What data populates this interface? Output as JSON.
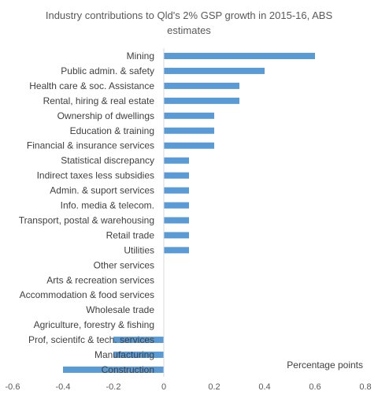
{
  "chart_data": {
    "type": "bar",
    "orientation": "horizontal",
    "title_line1": "Industry contributions to Qld's 2% GSP growth in 2015-16,  ABS",
    "title_line2": "estimates",
    "unit_label": "Percentage points",
    "bar_color": "#5b9bd5",
    "xlim": [
      -0.6,
      0.8
    ],
    "xticks": [
      "-0.6",
      "-0.4",
      "-0.2",
      "0",
      "0.2",
      "0.4",
      "0.6",
      "0.8"
    ],
    "xtick_values": [
      -0.6,
      -0.4,
      -0.2,
      0,
      0.2,
      0.4,
      0.6,
      0.8
    ],
    "grid": false,
    "categories": [
      "Mining",
      "Public admin. & safety",
      "Health care & soc. Assistance",
      "Rental, hiring & real estate",
      "Ownership of dwellings",
      "Education & training",
      "Financial & insurance services",
      "Statistical discrepancy",
      "Indirect taxes less subsidies",
      "Admin. & suport services",
      "Info. media & telecom.",
      "Transport, postal & warehousing",
      "Retail trade",
      "Utilities",
      "Other services",
      "Arts & recreation services",
      "Accommodation & food services",
      "Wholesale trade",
      "Agriculture, forestry & fishing",
      "Prof, scientifc & tech. services",
      "Manufacturing",
      "Construction"
    ],
    "values": [
      0.6,
      0.4,
      0.3,
      0.3,
      0.2,
      0.2,
      0.2,
      0.1,
      0.1,
      0.1,
      0.1,
      0.1,
      0.1,
      0.1,
      0,
      0,
      0,
      0,
      0,
      -0.2,
      -0.2,
      -0.4
    ]
  }
}
